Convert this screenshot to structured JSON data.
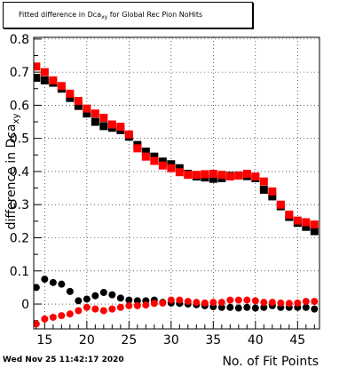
{
  "title": {
    "prefix": "Fitted difference in Dca",
    "sub": "xy",
    "suffix": " for Global Rec Pion NoHits"
  },
  "timestamp": "Wed Nov 25 11:42:17 2020",
  "chart_data": {
    "type": "scatter",
    "xlabel": "No. of Fit Points",
    "ylabel": "difference in Dca",
    "ylabel_sub": "xy",
    "xlim": [
      13.7,
      47.6
    ],
    "ylim": [
      -0.075,
      0.805
    ],
    "x_ticks": [
      15,
      20,
      25,
      30,
      35,
      40,
      45
    ],
    "y_ticks": [
      0,
      0.1,
      0.2,
      0.3,
      0.4,
      0.5,
      0.6,
      0.7,
      0.8
    ],
    "grid": true,
    "series": [
      {
        "color": "#000000",
        "marker": "square",
        "x": [
          14,
          15,
          16,
          17,
          18,
          19,
          20,
          21,
          22,
          23,
          24,
          25,
          26,
          27,
          28,
          29,
          30,
          31,
          32,
          33,
          34,
          35,
          36,
          37,
          38,
          39,
          40,
          41,
          42,
          43,
          44,
          45,
          46,
          47
        ],
        "y": [
          0.683,
          0.675,
          0.668,
          0.65,
          0.622,
          0.598,
          0.575,
          0.55,
          0.537,
          0.532,
          0.525,
          0.505,
          0.48,
          0.46,
          0.445,
          0.43,
          0.422,
          0.41,
          0.393,
          0.385,
          0.382,
          0.378,
          0.38,
          0.387,
          0.388,
          0.386,
          0.38,
          0.345,
          0.325,
          0.295,
          0.263,
          0.245,
          0.233,
          0.22
        ]
      },
      {
        "color": "#ff0000",
        "marker": "square",
        "x": [
          14,
          15,
          16,
          17,
          18,
          19,
          20,
          21,
          22,
          23,
          24,
          25,
          26,
          27,
          28,
          29,
          30,
          31,
          32,
          33,
          34,
          35,
          36,
          37,
          38,
          39,
          40,
          41,
          42,
          43,
          44,
          45,
          46,
          47
        ],
        "y": [
          0.717,
          0.7,
          0.675,
          0.658,
          0.635,
          0.613,
          0.59,
          0.575,
          0.562,
          0.542,
          0.535,
          0.512,
          0.47,
          0.445,
          0.432,
          0.418,
          0.41,
          0.398,
          0.39,
          0.39,
          0.392,
          0.393,
          0.39,
          0.385,
          0.388,
          0.393,
          0.385,
          0.37,
          0.34,
          0.3,
          0.27,
          0.252,
          0.247,
          0.24
        ]
      },
      {
        "color": "#000000",
        "marker": "circle",
        "x": [
          14,
          15,
          16,
          17,
          18,
          19,
          20,
          21,
          22,
          23,
          24,
          25,
          26,
          27,
          28,
          29,
          30,
          31,
          32,
          33,
          34,
          35,
          36,
          37,
          38,
          39,
          40,
          41,
          42,
          43,
          44,
          45,
          46,
          47
        ],
        "y": [
          0.05,
          0.075,
          0.065,
          0.06,
          0.038,
          0.01,
          0.015,
          0.025,
          0.035,
          0.028,
          0.018,
          0.012,
          0.01,
          0.01,
          0.012,
          0.005,
          0.003,
          0.002,
          0.0,
          -0.002,
          -0.005,
          -0.008,
          -0.01,
          -0.01,
          -0.012,
          -0.01,
          -0.012,
          -0.01,
          -0.005,
          -0.01,
          -0.01,
          -0.01,
          -0.01,
          -0.015
        ]
      },
      {
        "color": "#ff0000",
        "marker": "circle",
        "x": [
          14,
          15,
          16,
          17,
          18,
          19,
          20,
          21,
          22,
          23,
          24,
          25,
          26,
          27,
          28,
          29,
          30,
          31,
          32,
          33,
          34,
          35,
          36,
          37,
          38,
          39,
          40,
          41,
          42,
          43,
          44,
          45,
          46,
          47
        ],
        "y": [
          -0.06,
          -0.045,
          -0.04,
          -0.035,
          -0.03,
          -0.02,
          -0.01,
          -0.015,
          -0.02,
          -0.015,
          -0.01,
          -0.005,
          -0.005,
          -0.003,
          0.002,
          0.003,
          0.012,
          0.012,
          0.008,
          0.005,
          0.003,
          0.005,
          0.005,
          0.012,
          0.012,
          0.012,
          0.01,
          0.005,
          0.005,
          0.003,
          0.002,
          0.003,
          0.008,
          0.008
        ]
      }
    ]
  }
}
